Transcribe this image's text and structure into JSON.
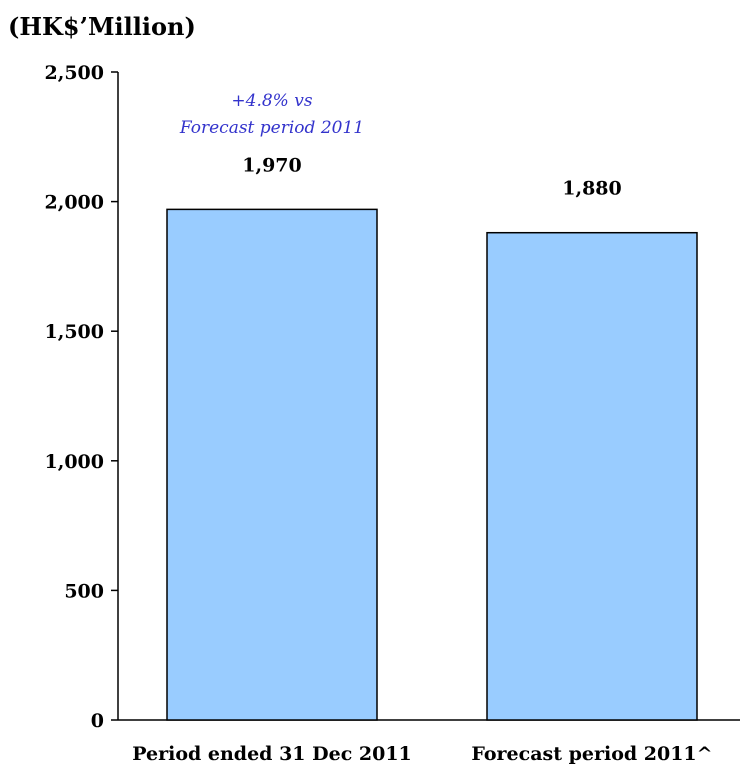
{
  "chart_data": {
    "type": "bar",
    "unit_label": "(HK$’Million)",
    "categories": [
      "Period ended 31 Dec 2011",
      "Forecast period 2011^"
    ],
    "values": [
      1970,
      1880
    ],
    "value_labels": [
      "1,970",
      "1,880"
    ],
    "ylim": [
      0,
      2500
    ],
    "yticks": [
      0,
      500,
      1000,
      1500,
      2000,
      2500
    ],
    "ytick_labels": [
      "0",
      "500",
      "1,000",
      "1,500",
      "2,000",
      "2,500"
    ],
    "annotation": {
      "lines": [
        "+4.8% vs",
        "Forecast period 2011"
      ],
      "color": "#3333cc"
    },
    "bar_color": "#99ccff",
    "bar_edge_color": "#000000",
    "grid": false,
    "legend": "none"
  }
}
